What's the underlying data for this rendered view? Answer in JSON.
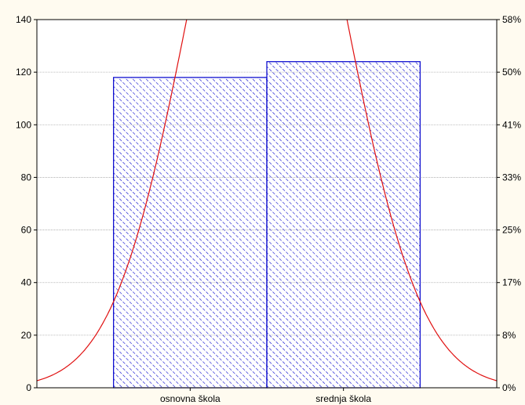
{
  "chart_data": {
    "type": "bar",
    "title": "",
    "xlabel": "",
    "ylabel": "",
    "categories": [
      "osnovna škola",
      "srednja škola"
    ],
    "values": [
      118,
      124
    ],
    "ylim": [
      0,
      140
    ],
    "y_ticks": [
      "0",
      "20",
      "40",
      "60",
      "80",
      "100",
      "120",
      "140"
    ],
    "y2_ticks": [
      "0%",
      "8%",
      "17%",
      "25%",
      "33%",
      "41%",
      "50%",
      "58%"
    ],
    "grid": true,
    "bar_fill": "diagonal-hatch",
    "colors": {
      "bar": "#0000cc",
      "curve": "#e01010",
      "grid": "#a8a8a8",
      "background": "#fffbf0",
      "plot_background": "#ffffff"
    },
    "normal_curve": {
      "mean": 1.5,
      "sd": 0.5,
      "peak": 242
    }
  }
}
